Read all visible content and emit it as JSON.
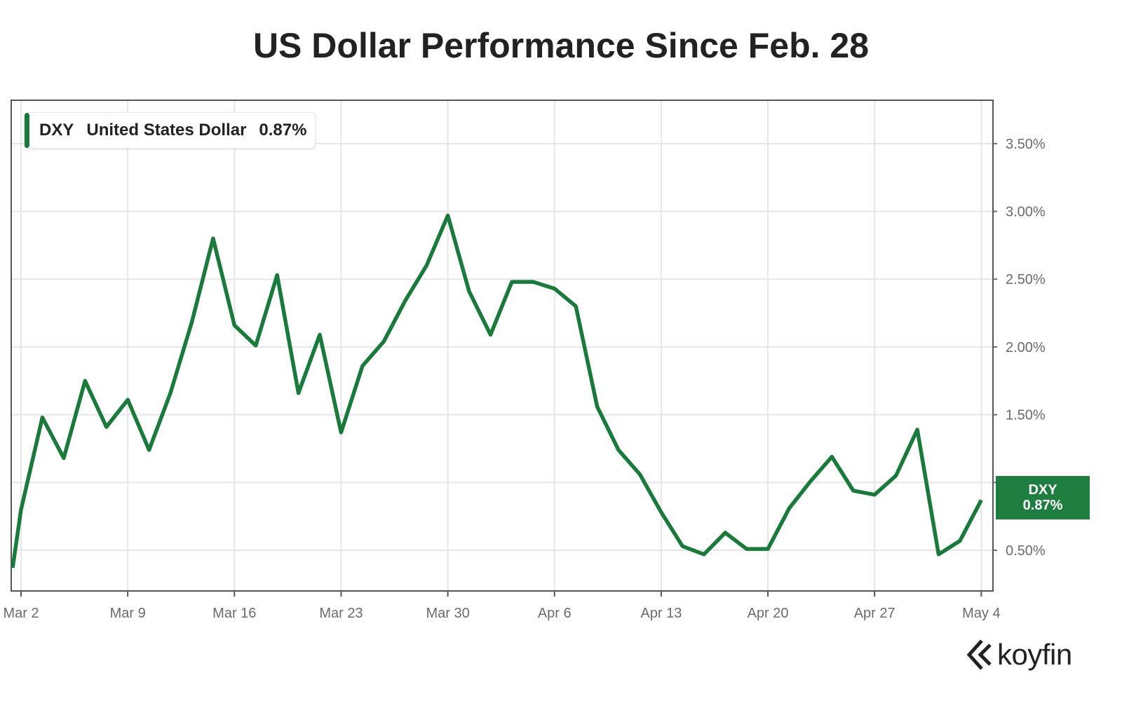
{
  "title": "US Dollar Performance Since Feb. 28",
  "legend": {
    "ticker": "DXY",
    "name": "United States Dollar",
    "value": "0.87%"
  },
  "badge": {
    "ticker": "DXY",
    "value": "0.87%"
  },
  "logo": {
    "text": "koyfin"
  },
  "colors": {
    "line": "#1a7a3c",
    "badge": "#1e7e3f",
    "grid": "#e6e6e6",
    "axis_text": "#6b6b6b",
    "frame": "#555555"
  },
  "chart_data": {
    "type": "line",
    "series": [
      {
        "name": "DXY",
        "x": [
          "Mar 2",
          "Mar 3",
          "Mar 4",
          "Mar 5",
          "Mar 6",
          "Mar 9",
          "Mar 10",
          "Mar 11",
          "Mar 12",
          "Mar 13",
          "Mar 16",
          "Mar 17",
          "Mar 18",
          "Mar 19",
          "Mar 20",
          "Mar 23",
          "Mar 24",
          "Mar 25",
          "Mar 26",
          "Mar 27",
          "Mar 30",
          "Mar 31",
          "Apr 1",
          "Apr 2",
          "Apr 3",
          "Apr 6",
          "Apr 7",
          "Apr 8",
          "Apr 9",
          "Apr 10",
          "Apr 13",
          "Apr 14",
          "Apr 15",
          "Apr 16",
          "Apr 17",
          "Apr 20",
          "Apr 21",
          "Apr 22",
          "Apr 23",
          "Apr 24",
          "Apr 27",
          "Apr 28",
          "Apr 29",
          "Apr 30",
          "May 1",
          "May 4"
        ],
        "values": [
          0.8,
          1.48,
          1.18,
          1.75,
          1.41,
          1.61,
          1.24,
          1.66,
          2.18,
          2.8,
          2.16,
          2.01,
          2.53,
          1.66,
          2.09,
          1.37,
          1.86,
          2.04,
          2.34,
          2.6,
          2.97,
          2.41,
          2.09,
          2.48,
          2.48,
          2.43,
          2.3,
          1.56,
          1.24,
          1.06,
          0.78,
          0.53,
          0.47,
          0.63,
          0.51,
          0.51,
          0.81,
          1.01,
          1.19,
          0.94,
          0.91,
          1.05,
          1.39,
          0.47,
          0.57,
          0.87
        ]
      }
    ],
    "leading_value": 0.37,
    "x_tick_labels": [
      "Mar 2",
      "Mar 9",
      "Mar 16",
      "Mar 23",
      "Mar 30",
      "Apr 6",
      "Apr 13",
      "Apr 20",
      "Apr 27",
      "May 4"
    ],
    "y_tick_labels": [
      "0.50%",
      "1.00%",
      "1.50%",
      "2.00%",
      "2.50%",
      "3.00%",
      "3.50%"
    ],
    "y_ticks": [
      0.5,
      1.0,
      1.5,
      2.0,
      2.5,
      3.0,
      3.5
    ],
    "ylim": [
      0.2,
      3.82
    ],
    "y_axis_position": "right",
    "grid": true,
    "legend_position": "top-left"
  }
}
